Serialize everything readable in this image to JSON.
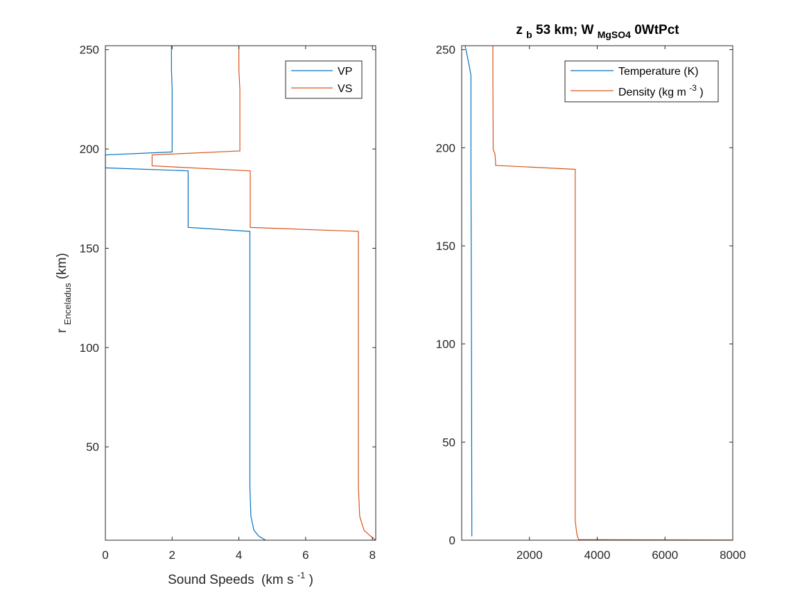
{
  "chart_data": [
    {
      "type": "line",
      "title": "",
      "xlabel": "Sound Speeds",
      "xlabel_unit_prefix": "(km s",
      "xlabel_unit_exp": "-1",
      "xlabel_unit_suffix": ")",
      "ylabel_main": "r",
      "ylabel_sub": "Enceladus",
      "ylabel_unit": " (km)",
      "xlim": [
        0,
        8.1
      ],
      "ylim": [
        3,
        252
      ],
      "xticks": [
        0,
        2,
        4,
        6,
        8
      ],
      "xtick_labels": [
        "0",
        "2",
        "4",
        "6",
        "8"
      ],
      "yticks": [
        50,
        100,
        150,
        200,
        250
      ],
      "ytick_labels": [
        "50",
        "100",
        "150",
        "200",
        "250"
      ],
      "grid": false,
      "legend_position": "top-right",
      "series": [
        {
          "name": "VP",
          "color": "#0072BD",
          "x": [
            1.98,
            1.98,
            2.0,
            2.0,
            0.0,
            0.0,
            2.48,
            2.48,
            4.33,
            4.33,
            4.36,
            4.45,
            4.6,
            4.8
          ],
          "y": [
            252,
            240,
            230,
            198.5,
            197,
            190.5,
            189,
            160.5,
            158.5,
            30,
            15,
            8,
            5,
            3
          ]
        },
        {
          "name": "VS",
          "color": "#D95319",
          "x": [
            4.0,
            4.0,
            4.03,
            4.03,
            1.4,
            1.4,
            4.34,
            4.34,
            7.58,
            7.58,
            7.62,
            7.75,
            7.95,
            8.1
          ],
          "y": [
            252,
            240,
            230,
            199,
            197,
            191.5,
            189,
            160.5,
            158.5,
            30,
            15,
            8,
            5,
            3
          ]
        }
      ]
    },
    {
      "type": "line",
      "title_main": "z",
      "title_sub1": "b",
      "title_mid": " 53 km; W",
      "title_sub2": "MgSO4",
      "title_end": "0WtPct",
      "xlabel": "",
      "ylabel": "",
      "xlim": [
        0,
        8000
      ],
      "ylim": [
        0,
        252
      ],
      "xticks": [
        2000,
        4000,
        6000,
        8000
      ],
      "xtick_labels": [
        "2000",
        "4000",
        "6000",
        "8000"
      ],
      "yticks": [
        0,
        50,
        100,
        150,
        200,
        250
      ],
      "ytick_labels": [
        "0",
        "50",
        "100",
        "150",
        "200",
        "250"
      ],
      "grid": false,
      "legend_position": "top-right",
      "series": [
        {
          "name": "Temperature (K)",
          "color": "#0072BD",
          "x": [
            100,
            150,
            220,
            273,
            273,
            290,
            300
          ],
          "y": [
            252,
            248,
            242,
            237,
            190,
            100,
            2
          ]
        },
        {
          "name": "Density (kg m^-3)",
          "color": "#D95319",
          "x": [
            920,
            920,
            930,
            980,
            1000,
            1000,
            3350,
            3350,
            3400,
            3450,
            8000
          ],
          "y": [
            252,
            240,
            199,
            197,
            193,
            191,
            189,
            10,
            3,
            0.3,
            0.1
          ]
        }
      ],
      "legend_labels": [
        {
          "text": "Temperature (K)"
        },
        {
          "prefix": "Density (kg m",
          "exp": "-3",
          "suffix": ")"
        }
      ]
    }
  ]
}
